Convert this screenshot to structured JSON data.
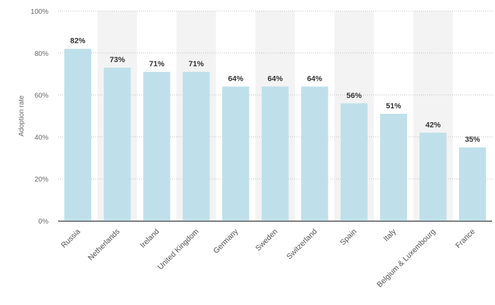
{
  "chart_data": {
    "type": "bar",
    "title": "",
    "xlabel": "",
    "ylabel": "Adoption rate",
    "categories": [
      "Russia",
      "Netherlands",
      "Ireland",
      "United Kingdom",
      "Germany",
      "Sweden",
      "Switzerland",
      "Spain",
      "Italy",
      "Belgium & Luxembourg",
      "France"
    ],
    "values": [
      82,
      73,
      71,
      71,
      64,
      64,
      64,
      56,
      51,
      42,
      35
    ],
    "value_labels": [
      "82%",
      "73%",
      "71%",
      "71%",
      "64%",
      "64%",
      "64%",
      "56%",
      "51%",
      "42%",
      "35%"
    ],
    "ylim": [
      0,
      100
    ],
    "yticks": [
      0,
      20,
      40,
      60,
      80,
      100
    ],
    "ytick_labels": [
      "0%",
      "20%",
      "40%",
      "60%",
      "80%",
      "100%"
    ],
    "grid": true,
    "legend": "none"
  },
  "colors": {
    "bar": "#bfe0ea",
    "band": "#f3f3f3",
    "grid": "#bbbbbb",
    "axis": "#333333"
  }
}
